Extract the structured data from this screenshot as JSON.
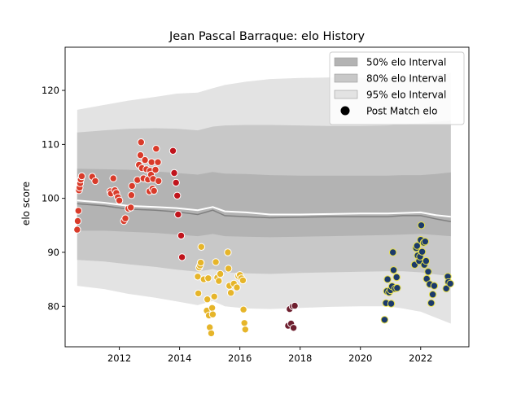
{
  "chart_data": {
    "type": "scatter",
    "title": "Jean Pascal Barraque: elo History",
    "xlabel": "",
    "ylabel": "elo score",
    "xlim": [
      2010.2,
      2023.6
    ],
    "ylim": [
      72.5,
      128.0
    ],
    "x_ticks": [
      2012,
      2014,
      2016,
      2018,
      2020,
      2022
    ],
    "y_ticks": [
      80,
      90,
      100,
      110,
      120
    ],
    "grid": false,
    "legend_position": "top-right",
    "legend": [
      {
        "label": "50% elo Interval",
        "kind": "band50"
      },
      {
        "label": "80% elo Interval",
        "kind": "band80"
      },
      {
        "label": "95% elo Interval",
        "kind": "band95"
      },
      {
        "label": "Post Match elo",
        "kind": "marker"
      }
    ],
    "colors": {
      "band50": "#b3b3b3",
      "band80": "#c8c8c8",
      "band95": "#e3e3e3",
      "mean_line": "#ffffff",
      "median_line": "#808080",
      "legend_marker": "#000000"
    },
    "bands": {
      "x": [
        2010.6,
        2011.5,
        2012.3,
        2013.2,
        2013.9,
        2014.6,
        2015.1,
        2015.5,
        2016.2,
        2017.0,
        2018.0,
        2019.0,
        2020.0,
        2020.9,
        2021.4,
        2022.0,
        2022.5,
        2023.0
      ],
      "mean": [
        99.6,
        99.2,
        98.6,
        98.4,
        98.2,
        97.8,
        98.4,
        97.6,
        97.4,
        97.0,
        97.0,
        97.1,
        97.2,
        97.2,
        97.3,
        97.4,
        96.9,
        96.6
      ],
      "median": [
        99.0,
        98.6,
        98.0,
        97.8,
        97.5,
        97.0,
        97.8,
        96.8,
        96.6,
        96.4,
        96.5,
        96.6,
        96.6,
        96.6,
        96.8,
        96.8,
        96.2,
        95.7
      ],
      "p50_low": [
        94.0,
        94.0,
        93.8,
        93.6,
        93.3,
        93.0,
        93.4,
        93.0,
        92.9,
        92.8,
        92.9,
        93.0,
        93.1,
        93.2,
        93.3,
        93.4,
        93.2,
        93.0
      ],
      "p50_high": [
        105.5,
        105.4,
        105.3,
        105.0,
        104.7,
        104.4,
        104.9,
        104.6,
        104.5,
        104.3,
        104.2,
        104.2,
        104.2,
        104.2,
        104.3,
        104.3,
        104.5,
        104.8
      ],
      "p80_low": [
        88.6,
        88.3,
        87.8,
        87.3,
        86.8,
        86.4,
        86.9,
        86.3,
        86.1,
        86.0,
        86.2,
        86.3,
        86.4,
        86.5,
        86.5,
        86.3,
        85.9,
        85.6
      ],
      "p80_high": [
        112.2,
        112.6,
        112.9,
        113.0,
        112.9,
        112.6,
        113.3,
        113.5,
        113.6,
        113.6,
        113.5,
        113.4,
        113.4,
        113.5,
        113.7,
        113.9,
        114.2,
        114.4
      ],
      "p95_low": [
        83.8,
        83.2,
        82.3,
        81.6,
        80.9,
        80.2,
        81.0,
        80.0,
        79.6,
        79.5,
        79.7,
        79.9,
        80.0,
        80.0,
        79.6,
        79.0,
        77.9,
        76.8
      ],
      "p95_high": [
        116.4,
        117.3,
        118.1,
        118.8,
        119.4,
        119.6,
        120.4,
        121.0,
        121.6,
        122.1,
        122.3,
        122.4,
        122.4,
        122.4,
        122.5,
        122.7,
        123.0,
        123.3
      ]
    },
    "series": [
      {
        "color": "#d93b2a",
        "points": [
          [
            2010.6,
            94.2
          ],
          [
            2010.62,
            95.8
          ],
          [
            2010.64,
            97.7
          ],
          [
            2010.66,
            101.5
          ],
          [
            2010.68,
            102.0
          ],
          [
            2010.7,
            102.8
          ],
          [
            2010.72,
            103.5
          ],
          [
            2010.75,
            104.1
          ],
          [
            2011.1,
            104.0
          ],
          [
            2011.2,
            103.2
          ],
          [
            2011.7,
            101.3
          ],
          [
            2011.72,
            100.9
          ],
          [
            2011.8,
            103.7
          ],
          [
            2011.85,
            101.5
          ],
          [
            2011.9,
            101.0
          ],
          [
            2011.95,
            100.2
          ],
          [
            2012.0,
            99.6
          ],
          [
            2012.15,
            95.8
          ],
          [
            2012.2,
            96.3
          ],
          [
            2012.3,
            98.1
          ],
          [
            2012.38,
            98.3
          ],
          [
            2012.4,
            100.6
          ],
          [
            2012.42,
            102.3
          ],
          [
            2012.6,
            103.4
          ],
          [
            2012.65,
            106.2
          ],
          [
            2012.7,
            108.0
          ],
          [
            2012.72,
            110.4
          ],
          [
            2012.75,
            105.6
          ],
          [
            2012.8,
            103.7
          ],
          [
            2012.85,
            107.1
          ],
          [
            2012.9,
            105.4
          ],
          [
            2012.95,
            103.5
          ],
          [
            2013.0,
            101.3
          ],
          [
            2013.02,
            105.1
          ],
          [
            2013.05,
            104.4
          ],
          [
            2013.07,
            106.7
          ],
          [
            2013.1,
            101.8
          ],
          [
            2013.12,
            103.6
          ],
          [
            2013.15,
            101.4
          ],
          [
            2013.2,
            105.3
          ],
          [
            2013.22,
            109.2
          ],
          [
            2013.28,
            106.7
          ],
          [
            2013.3,
            103.2
          ]
        ]
      },
      {
        "color": "#c0141c",
        "points": [
          [
            2013.78,
            108.8
          ],
          [
            2013.82,
            104.7
          ],
          [
            2013.88,
            102.9
          ],
          [
            2013.92,
            100.5
          ],
          [
            2013.95,
            97.0
          ],
          [
            2014.05,
            93.1
          ],
          [
            2014.08,
            89.1
          ]
        ]
      },
      {
        "color": "#e6b52a",
        "points": [
          [
            2014.6,
            85.5
          ],
          [
            2014.62,
            82.4
          ],
          [
            2014.65,
            87.2
          ],
          [
            2014.68,
            87.6
          ],
          [
            2014.7,
            88.1
          ],
          [
            2014.72,
            91.0
          ],
          [
            2014.8,
            85.0
          ],
          [
            2014.9,
            79.2
          ],
          [
            2014.92,
            81.3
          ],
          [
            2014.95,
            85.2
          ],
          [
            2014.97,
            78.3
          ],
          [
            2015.0,
            76.1
          ],
          [
            2015.05,
            75.0
          ],
          [
            2015.08,
            79.7
          ],
          [
            2015.1,
            78.5
          ],
          [
            2015.15,
            81.8
          ],
          [
            2015.2,
            88.2
          ],
          [
            2015.25,
            85.3
          ],
          [
            2015.3,
            84.7
          ],
          [
            2015.35,
            86.0
          ],
          [
            2015.6,
            90.0
          ],
          [
            2015.62,
            87.0
          ],
          [
            2015.65,
            83.8
          ],
          [
            2015.7,
            82.5
          ],
          [
            2015.8,
            84.2
          ],
          [
            2015.9,
            83.5
          ],
          [
            2015.95,
            85.6
          ],
          [
            2016.0,
            85.8
          ],
          [
            2016.05,
            85.2
          ],
          [
            2016.1,
            84.8
          ],
          [
            2016.12,
            79.4
          ],
          [
            2016.15,
            76.9
          ],
          [
            2016.18,
            75.7
          ]
        ]
      },
      {
        "color": "#6e1f2f",
        "points": [
          [
            2017.6,
            76.4
          ],
          [
            2017.65,
            79.5
          ],
          [
            2017.7,
            76.8
          ],
          [
            2017.75,
            80.0
          ],
          [
            2017.78,
            76.0
          ],
          [
            2017.82,
            80.1
          ]
        ]
      },
      {
        "color": "#1b3a6b",
        "edge": "#e8e04a",
        "points": [
          [
            2020.8,
            77.5
          ],
          [
            2020.85,
            80.6
          ],
          [
            2020.88,
            82.8
          ],
          [
            2020.9,
            85.0
          ],
          [
            2020.95,
            82.6
          ],
          [
            2021.0,
            83.0
          ],
          [
            2021.02,
            80.5
          ],
          [
            2021.05,
            83.7
          ],
          [
            2021.08,
            90.0
          ],
          [
            2021.1,
            86.7
          ],
          [
            2021.15,
            83.3
          ],
          [
            2021.2,
            85.4
          ],
          [
            2021.22,
            83.4
          ],
          [
            2021.8,
            87.7
          ],
          [
            2021.85,
            90.8
          ],
          [
            2021.88,
            91.2
          ],
          [
            2021.9,
            89.4
          ],
          [
            2021.95,
            88.4
          ],
          [
            2021.98,
            89.2
          ],
          [
            2022.0,
            92.3
          ],
          [
            2022.02,
            95.0
          ],
          [
            2022.05,
            90.1
          ],
          [
            2022.1,
            91.8
          ],
          [
            2022.12,
            87.7
          ],
          [
            2022.15,
            92.0
          ],
          [
            2022.18,
            88.4
          ],
          [
            2022.2,
            85.1
          ],
          [
            2022.25,
            86.4
          ],
          [
            2022.3,
            84.1
          ],
          [
            2022.35,
            80.6
          ],
          [
            2022.4,
            82.2
          ],
          [
            2022.45,
            83.8
          ],
          [
            2022.85,
            83.3
          ],
          [
            2022.9,
            85.5
          ],
          [
            2022.92,
            84.5
          ],
          [
            2022.98,
            84.2
          ]
        ]
      }
    ]
  }
}
